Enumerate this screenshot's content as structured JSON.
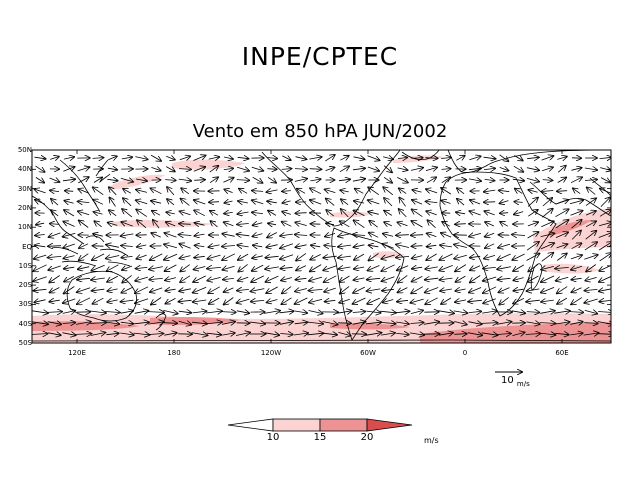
{
  "header": {
    "organization": "INPE/CPTEC",
    "map_title": "Vento em 850 hPA JUN/2002"
  },
  "map": {
    "projection": "cylindrical equidistant",
    "lon_range": [
      80,
      90
    ],
    "lat_range": [
      -50,
      50
    ],
    "lat_labels": [
      "50N",
      "40N",
      "30N",
      "20N",
      "10N",
      "EQ",
      "10S",
      "20S",
      "30S",
      "40S",
      "50S"
    ],
    "lon_labels": [
      "120E",
      "180",
      "120W",
      "60W",
      "0",
      "60E"
    ],
    "wind_shading_colors": {
      "10-15": "#fbd3d2",
      "15-20": "#ee9393",
      "20+": "#d94d4d"
    }
  },
  "vector_scale": {
    "value": "10",
    "unit": "m/s"
  },
  "colorbar": {
    "labels": [
      "10",
      "15",
      "20"
    ],
    "unit": "m/s",
    "colors": [
      "#ffffff",
      "#fbd3d2",
      "#ee9393",
      "#d94d4d"
    ]
  }
}
